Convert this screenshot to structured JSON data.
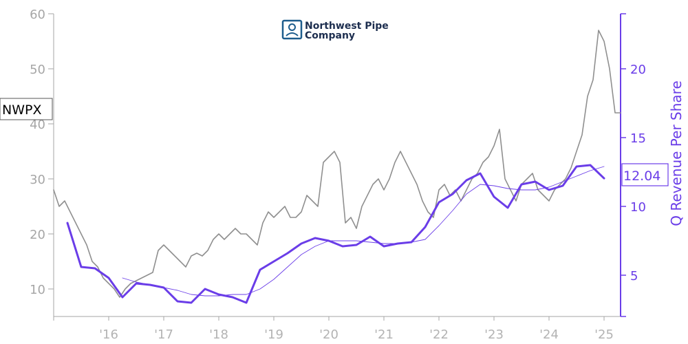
{
  "chart_data": {
    "type": "line",
    "title": "",
    "ticker": "NWPX",
    "logo": {
      "line1": "Northwest Pipe",
      "line2": "Company"
    },
    "xlabel": "",
    "ylabel_left": "",
    "ylabel_right": "Q Revenue Per Share",
    "x_tick_labels": [
      "'16",
      "'17",
      "'18",
      "'19",
      "'20",
      "'21",
      "'22",
      "'23",
      "'24",
      "'25"
    ],
    "x_tick_positions": [
      2016.0,
      2017.0,
      2018.0,
      2019.0,
      2020.0,
      2021.0,
      2022.0,
      2023.0,
      2024.0,
      2025.0
    ],
    "xlim": [
      2015.0,
      2025.3
    ],
    "ylim_left": [
      5,
      60
    ],
    "yticks_left": [
      10,
      20,
      30,
      40,
      50,
      60
    ],
    "ylim_right": [
      2,
      24
    ],
    "yticks_right": [
      5,
      10,
      15,
      20
    ],
    "last_value_label": "12.04",
    "grid": false,
    "colors": {
      "price": "#8f8f8f",
      "revenue": "#6a3de8",
      "axis_left": "#a6a6a6",
      "axis_right": "#6a3de8",
      "logo": "#1d5c8c"
    },
    "series": [
      {
        "name": "NWPX",
        "axis": "left",
        "x": [
          2015.0,
          2015.1,
          2015.2,
          2015.3,
          2015.4,
          2015.5,
          2015.6,
          2015.7,
          2015.8,
          2015.9,
          2016.0,
          2016.1,
          2016.2,
          2016.3,
          2016.4,
          2016.5,
          2016.6,
          2016.7,
          2016.8,
          2016.9,
          2017.0,
          2017.1,
          2017.2,
          2017.3,
          2017.4,
          2017.5,
          2017.6,
          2017.7,
          2017.8,
          2017.9,
          2018.0,
          2018.1,
          2018.2,
          2018.3,
          2018.4,
          2018.5,
          2018.6,
          2018.7,
          2018.8,
          2018.9,
          2019.0,
          2019.1,
          2019.2,
          2019.3,
          2019.4,
          2019.5,
          2019.6,
          2019.7,
          2019.8,
          2019.9,
          2020.0,
          2020.1,
          2020.2,
          2020.3,
          2020.4,
          2020.5,
          2020.6,
          2020.7,
          2020.8,
          2020.9,
          2021.0,
          2021.1,
          2021.2,
          2021.3,
          2021.4,
          2021.5,
          2021.6,
          2021.7,
          2021.8,
          2021.9,
          2022.0,
          2022.1,
          2022.2,
          2022.3,
          2022.4,
          2022.5,
          2022.6,
          2022.7,
          2022.8,
          2022.9,
          2023.0,
          2023.1,
          2023.2,
          2023.3,
          2023.4,
          2023.5,
          2023.6,
          2023.7,
          2023.8,
          2023.9,
          2024.0,
          2024.1,
          2024.2,
          2024.3,
          2024.4,
          2024.5,
          2024.6,
          2024.7,
          2024.8,
          2024.9,
          2025.0,
          2025.1,
          2025.2,
          2025.3
        ],
        "values": [
          28,
          25,
          26,
          24,
          22,
          20,
          18,
          15,
          14,
          12,
          11,
          10,
          8.5,
          10,
          11,
          11.5,
          12,
          12.5,
          13,
          17,
          18,
          17,
          16,
          15,
          14,
          16,
          16.5,
          16,
          17,
          19,
          20,
          19,
          20,
          21,
          20,
          20,
          19,
          18,
          22,
          24,
          23,
          24,
          25,
          23,
          23,
          24,
          27,
          26,
          25,
          33,
          34,
          35,
          33,
          22,
          23,
          21,
          25,
          27,
          29,
          30,
          28,
          30,
          33,
          35,
          33,
          31,
          29,
          26,
          24,
          23,
          28,
          29,
          27,
          28,
          26,
          28,
          30,
          31,
          33,
          34,
          36,
          39,
          30,
          28,
          26,
          29,
          30,
          31,
          28,
          27,
          26,
          28,
          29,
          30,
          32,
          35,
          38,
          45,
          48,
          57,
          55,
          50,
          42,
          42
        ]
      },
      {
        "name": "Q Revenue Per Share",
        "axis": "right",
        "x": [
          2015.25,
          2015.5,
          2015.75,
          2016.0,
          2016.25,
          2016.5,
          2016.75,
          2017.0,
          2017.25,
          2017.5,
          2017.75,
          2018.0,
          2018.25,
          2018.5,
          2018.75,
          2019.0,
          2019.25,
          2019.5,
          2019.75,
          2020.0,
          2020.25,
          2020.5,
          2020.75,
          2021.0,
          2021.25,
          2021.5,
          2021.75,
          2022.0,
          2022.25,
          2022.5,
          2022.75,
          2023.0,
          2023.25,
          2023.5,
          2023.75,
          2024.0,
          2024.25,
          2024.5,
          2024.75,
          2025.0
        ],
        "values": [
          8.8,
          5.6,
          5.5,
          4.8,
          3.4,
          4.4,
          4.3,
          4.1,
          3.1,
          3.0,
          4.0,
          3.6,
          3.4,
          3.0,
          5.4,
          6.0,
          6.6,
          7.3,
          7.7,
          7.5,
          7.1,
          7.2,
          7.8,
          7.1,
          7.3,
          7.4,
          8.5,
          10.3,
          10.9,
          11.9,
          12.4,
          10.7,
          9.9,
          11.6,
          11.8,
          11.2,
          11.5,
          12.9,
          13.0,
          12.04
        ]
      },
      {
        "name": "",
        "axis": "right",
        "style": "thin",
        "x": [
          2016.25,
          2016.5,
          2016.75,
          2017.0,
          2017.25,
          2017.5,
          2017.75,
          2018.0,
          2018.25,
          2018.5,
          2018.75,
          2019.0,
          2019.25,
          2019.5,
          2019.75,
          2020.0,
          2020.25,
          2020.5,
          2020.75,
          2021.0,
          2021.25,
          2021.5,
          2021.75,
          2022.0,
          2022.25,
          2022.5,
          2022.75,
          2023.0,
          2023.25,
          2023.5,
          2023.75,
          2024.0,
          2024.25,
          2024.5,
          2024.75,
          2025.0
        ],
        "values": [
          4.8,
          4.5,
          4.3,
          4.1,
          3.9,
          3.6,
          3.5,
          3.5,
          3.6,
          3.6,
          4.0,
          4.7,
          5.6,
          6.5,
          7.1,
          7.5,
          7.5,
          7.5,
          7.4,
          7.3,
          7.3,
          7.4,
          7.6,
          8.6,
          9.7,
          10.9,
          11.6,
          11.5,
          11.3,
          11.2,
          11.2,
          11.4,
          11.8,
          12.2,
          12.6,
          12.9
        ]
      }
    ]
  }
}
